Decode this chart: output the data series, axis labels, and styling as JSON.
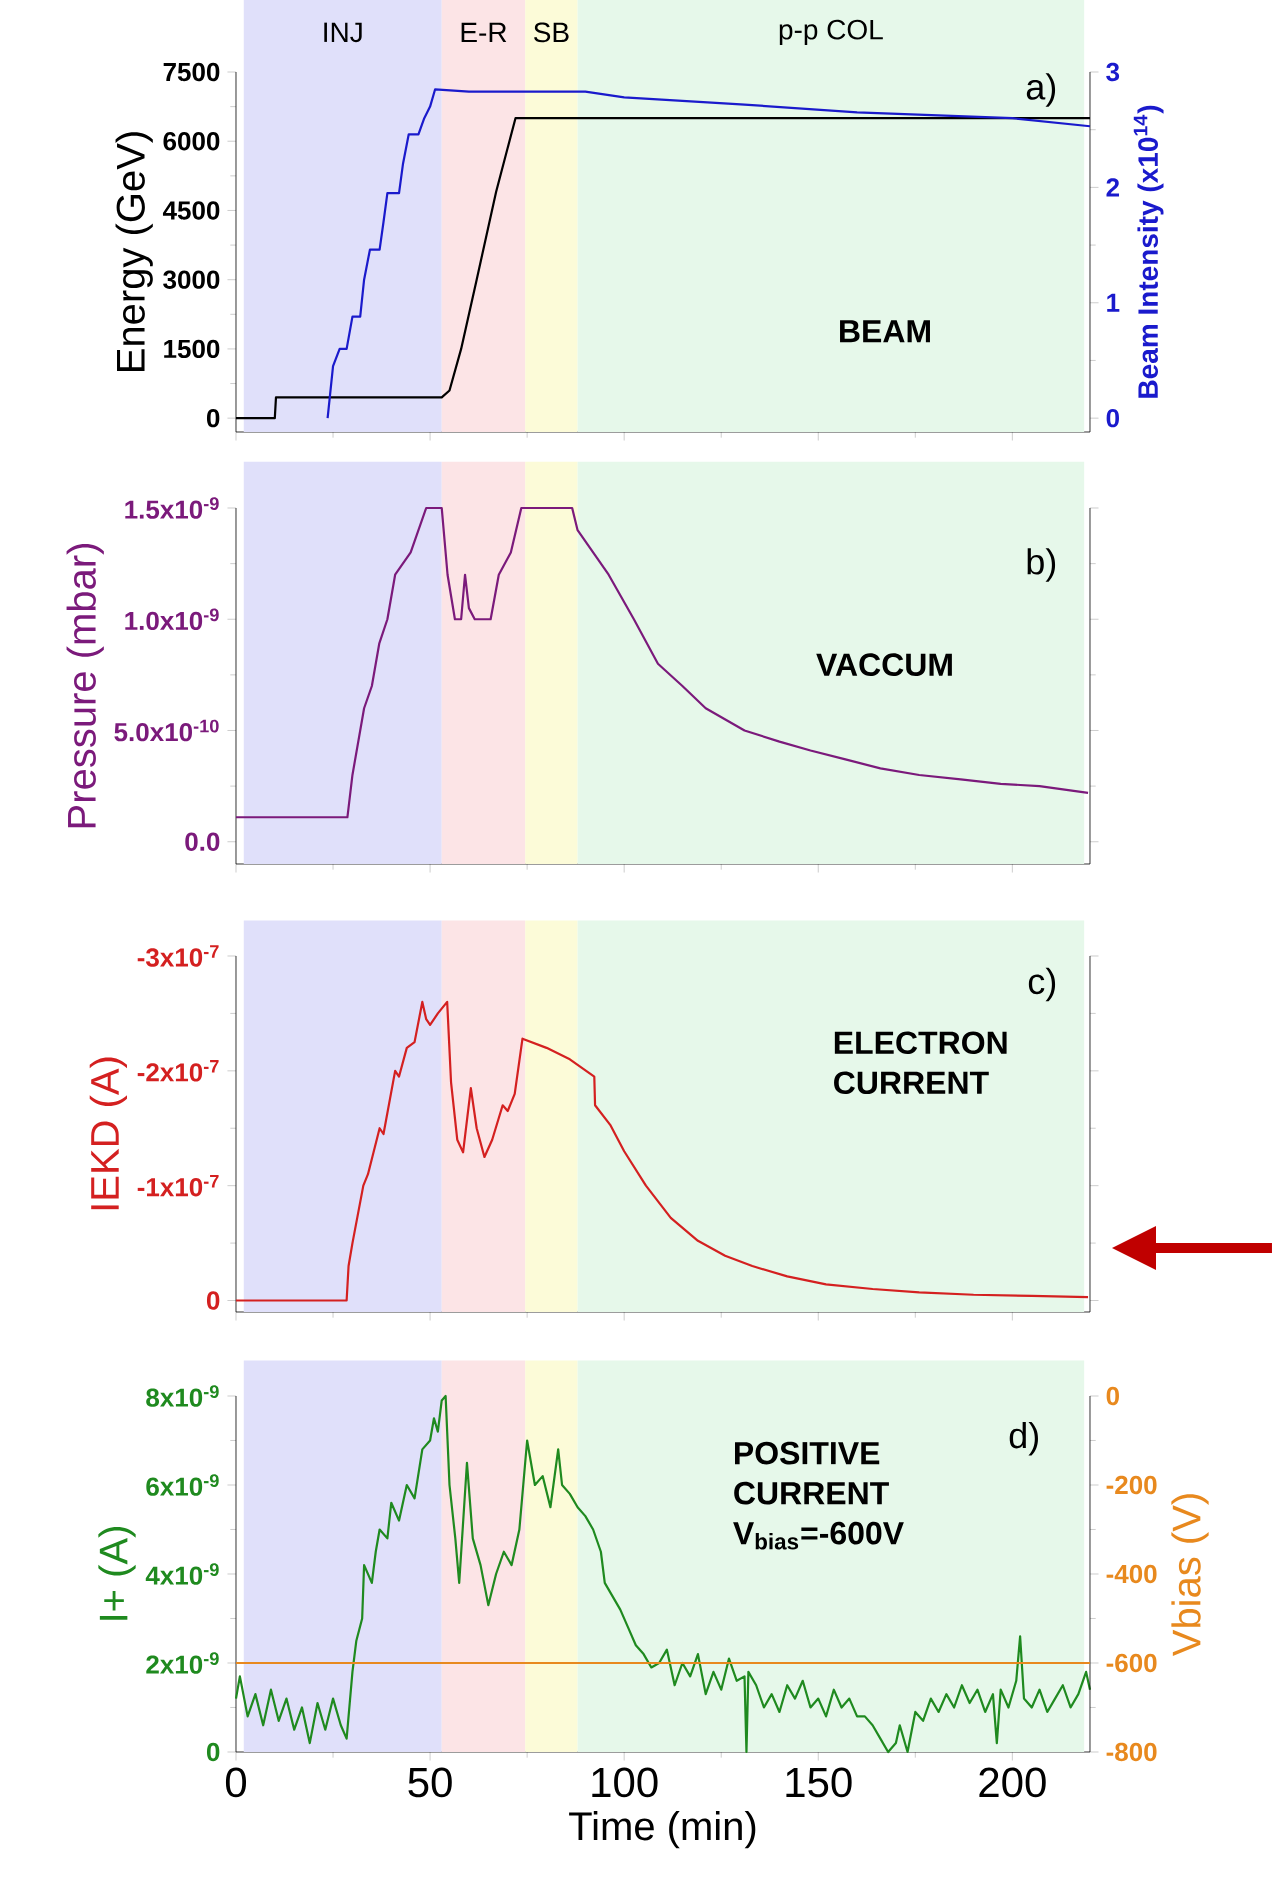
{
  "chart_data": [
    {
      "type": "line",
      "annotations": [
        "a)",
        "BEAM"
      ],
      "xlim": [
        0,
        220
      ],
      "xticks": [
        0,
        50,
        100,
        150,
        200
      ],
      "ylim": [
        -300,
        7500
      ],
      "yticks": [
        0,
        1500,
        3000,
        4500,
        6000,
        7500
      ],
      "y2lim": [
        -0.12,
        3
      ],
      "y2ticks": [
        0,
        1,
        2,
        3
      ],
      "ylabel": "Energy (GeV)",
      "y2label": "Beam Intensity (x10$^{14}$)",
      "tick_labels": "y",
      "bands": [
        {
          "axis": "x",
          "from": 2,
          "to": 53,
          "label": "INJ",
          "color": "#e0e0fa"
        },
        {
          "axis": "x",
          "from": 53,
          "to": 74.5,
          "label": "E-R",
          "color": "#fce4e6"
        },
        {
          "axis": "x",
          "from": 74.5,
          "to": 88,
          "label": "SB",
          "color": "#fcfbd8"
        },
        {
          "axis": "x",
          "from": 88,
          "to": 218.5,
          "label": "p-p COL",
          "color": "#e6f8ea"
        }
      ],
      "series": [
        {
          "color": "#000000",
          "x": [
            0,
            10,
            10.3,
            53,
            55,
            58,
            62,
            67,
            72,
            220
          ],
          "values": [
            0,
            0,
            450,
            450,
            600,
            1500,
            3000,
            4900,
            6500,
            6500
          ]
        },
        {
          "color": "#1a1acc",
          "axis": "y2",
          "x": [
            23.6,
            25,
            26.7,
            28.5,
            30,
            32,
            33,
            34.5,
            37,
            38,
            39,
            42,
            43,
            44.5,
            47,
            48.5,
            50,
            51.3,
            60,
            90,
            100,
            130,
            160,
            200,
            220
          ],
          "values": [
            0,
            0.45,
            0.6,
            0.6,
            0.88,
            0.88,
            1.2,
            1.46,
            1.46,
            1.7,
            1.95,
            1.95,
            2.2,
            2.46,
            2.46,
            2.6,
            2.7,
            2.85,
            2.83,
            2.83,
            2.78,
            2.72,
            2.65,
            2.6,
            2.53
          ]
        }
      ]
    },
    {
      "type": "line",
      "annotations": [
        "b)",
        "VACCUM"
      ],
      "xlim": [
        0,
        220
      ],
      "xticks": [
        0,
        50,
        100,
        150,
        200
      ],
      "ylim": [
        -1e-10,
        1.5e-09
      ],
      "yticks": [
        {
          "value": 0,
          "label": "0.0"
        },
        {
          "value": 5e-10,
          "label": "5.0x10$^{-10}$"
        },
        {
          "value": 1e-09,
          "label": "1.0x10$^{-9}$"
        },
        {
          "value": 1.5e-09,
          "label": "1.5x10$^{-9}$"
        }
      ],
      "ylabel": "Pressure (mbar)",
      "tick_labels": "y",
      "bands": [
        {
          "axis": "x",
          "from": 2,
          "to": 53,
          "color": "#e0e0fa"
        },
        {
          "axis": "x",
          "from": 53,
          "to": 74.5,
          "color": "#fce4e6"
        },
        {
          "axis": "x",
          "from": 74.5,
          "to": 88,
          "color": "#fcfbd8"
        },
        {
          "axis": "x",
          "from": 88,
          "to": 218.5,
          "color": "#e6f8ea"
        }
      ],
      "series": [
        {
          "color": "#7b1a7b",
          "x": [
            0,
            28.7,
            30,
            33,
            35,
            36.9,
            39,
            41,
            43,
            45,
            47,
            49,
            53,
            54.5,
            56.4,
            58,
            59,
            60,
            61.5,
            65.6,
            67.7,
            70.8,
            73.5,
            86.6,
            88,
            92,
            96,
            102.5,
            108.7,
            115,
            121,
            131,
            140,
            148,
            157,
            166,
            176,
            186.7,
            197,
            207,
            219.5
          ],
          "values": [
            1.1e-10,
            1.1e-10,
            3e-10,
            6e-10,
            7e-10,
            8.9e-10,
            1e-09,
            1.2e-09,
            1.25e-09,
            1.3e-09,
            1.4e-09,
            1.5e-09,
            1.5e-09,
            1.2e-09,
            1e-09,
            1e-09,
            1.2e-09,
            1.05e-09,
            1e-09,
            1e-09,
            1.2e-09,
            1.3e-09,
            1.5e-09,
            1.5e-09,
            1.4e-09,
            1.3e-09,
            1.2e-09,
            1e-09,
            8e-10,
            7e-10,
            6e-10,
            5e-10,
            4.5e-10,
            4.1e-10,
            3.7e-10,
            3.3e-10,
            3e-10,
            2.8e-10,
            2.6e-10,
            2.5e-10,
            2.2e-10
          ]
        }
      ]
    },
    {
      "type": "line",
      "annotations": [
        "c)",
        "ELECTRON CURRENT"
      ],
      "xlim": [
        0,
        220
      ],
      "xticks": [
        0,
        50,
        100,
        150,
        200
      ],
      "ylim": [
        1e-08,
        -3e-07
      ],
      "yticks": [
        0,
        {
          "value": -1e-07,
          "label": "-1x10$^{-7}$"
        },
        {
          "value": -2e-07,
          "label": "-2x10$^{-7}$"
        },
        {
          "value": -3e-07,
          "label": "-3x10$^{-7}$"
        }
      ],
      "ylabel": "IEKD (A)",
      "tick_labels": "y",
      "bands": [
        {
          "axis": "x",
          "from": 2,
          "to": 53,
          "color": "#e0e0fa"
        },
        {
          "axis": "x",
          "from": 53,
          "to": 74.5,
          "color": "#fce4e6"
        },
        {
          "axis": "x",
          "from": 74.5,
          "to": 88,
          "color": "#fcfbd8"
        },
        {
          "axis": "x",
          "from": 88,
          "to": 218.5,
          "color": "#e6f8ea"
        }
      ],
      "series": [
        {
          "color": "#d42020",
          "x": [
            0,
            28.5,
            29,
            30,
            32.8,
            34,
            37,
            38,
            41,
            42,
            44,
            46,
            48,
            49,
            50,
            52,
            54.4,
            55.4,
            57,
            58.5,
            60.5,
            62,
            64,
            66,
            68.7,
            70,
            71.8,
            73.8,
            80,
            86,
            92.3,
            92.5,
            96.4,
            100,
            105.6,
            112,
            119,
            126,
            133,
            142,
            152,
            164,
            176,
            190,
            205,
            219.5
          ],
          "values": [
            0,
            0,
            -3e-08,
            -5e-08,
            -1e-07,
            -1.1e-07,
            -1.5e-07,
            -1.45e-07,
            -2e-07,
            -1.95e-07,
            -2.2e-07,
            -2.25e-07,
            -2.6e-07,
            -2.45e-07,
            -2.4e-07,
            -2.5e-07,
            -2.6e-07,
            -1.9e-07,
            -1.4e-07,
            -1.29e-07,
            -1.85e-07,
            -1.5e-07,
            -1.25e-07,
            -1.4e-07,
            -1.7e-07,
            -1.65e-07,
            -1.8e-07,
            -2.28e-07,
            -2.2e-07,
            -2.1e-07,
            -1.95e-07,
            -1.7e-07,
            -1.53e-07,
            -1.3e-07,
            -1e-07,
            -7.2e-08,
            -5.2e-08,
            -3.9e-08,
            -3e-08,
            -2.1e-08,
            -1.4e-08,
            -1e-08,
            -7e-09,
            -5e-09,
            -4e-09,
            -3e-09
          ]
        }
      ]
    },
    {
      "type": "line",
      "annotations": [
        "d)",
        "POSITIVE CURRENT V$_{bias}$=-600V"
      ],
      "xlabel": "Time (min)",
      "xlim": [
        0,
        220
      ],
      "xticks": [
        0,
        50,
        100,
        150,
        200
      ],
      "ylim": [
        0,
        8e-09
      ],
      "yticks": [
        0,
        {
          "value": 2e-09,
          "label": "2x10$^{-9}$"
        },
        {
          "value": 4e-09,
          "label": "4x10$^{-9}$"
        },
        {
          "value": 6e-09,
          "label": "6x10$^{-9}$"
        },
        {
          "value": 8e-09,
          "label": "8x10$^{-9}$"
        }
      ],
      "y2lim": [
        -800,
        0
      ],
      "y2ticks": [
        -800,
        -600,
        -400,
        -200,
        0
      ],
      "ylabel": "I+ (A)",
      "y2label": "Vbias (V)",
      "bands": [
        {
          "axis": "x",
          "from": 2,
          "to": 53,
          "color": "#e0e0fa"
        },
        {
          "axis": "x",
          "from": 53,
          "to": 74.5,
          "color": "#fce4e6"
        },
        {
          "axis": "x",
          "from": 74.5,
          "to": 88,
          "color": "#fcfbd8"
        },
        {
          "axis": "x",
          "from": 88,
          "to": 218.5,
          "color": "#e6f8ea"
        }
      ],
      "series": [
        {
          "color": "#1f8a1f",
          "x": [
            0,
            1,
            3,
            5,
            7,
            9,
            11,
            13,
            15,
            17,
            19,
            21,
            23,
            25,
            27,
            28.5,
            30,
            31,
            32.5,
            33,
            35,
            36,
            37,
            39,
            40,
            42,
            44,
            46,
            48,
            50,
            51,
            52,
            53,
            54,
            55,
            56.5,
            57.5,
            59.5,
            61,
            63,
            65,
            67,
            69,
            71,
            73,
            74.5,
            75,
            77,
            79,
            81,
            83,
            84,
            86,
            88,
            90,
            92,
            94,
            95,
            97,
            99,
            101,
            103,
            105,
            107,
            109,
            111,
            113,
            115,
            117,
            119,
            121,
            123,
            125,
            127,
            129,
            131,
            131.5,
            132,
            134,
            136,
            138,
            140,
            142,
            144,
            146,
            148,
            150,
            152,
            154,
            156,
            158,
            160,
            162,
            164,
            166,
            168,
            170,
            171,
            173,
            175,
            177,
            179,
            181,
            183,
            185,
            187,
            189,
            191,
            193,
            195,
            196,
            197,
            199,
            201,
            202,
            203,
            205,
            207,
            209,
            211,
            213,
            215,
            217,
            219,
            220
          ],
          "values": [
            1.2e-09,
            1.7e-09,
            8e-10,
            1.3e-09,
            6e-10,
            1.4e-09,
            7e-10,
            1.2e-09,
            5e-10,
            1e-09,
            2e-10,
            1.1e-09,
            5e-10,
            1.2e-09,
            6e-10,
            3e-10,
            1.8e-09,
            2.5e-09,
            3e-09,
            4.2e-09,
            3.8e-09,
            4.5e-09,
            5e-09,
            4.8e-09,
            5.6e-09,
            5.2e-09,
            6e-09,
            5.7e-09,
            6.8e-09,
            7e-09,
            7.5e-09,
            7.2e-09,
            7.9e-09,
            8e-09,
            6e-09,
            4.8e-09,
            3.8e-09,
            6.5e-09,
            4.8e-09,
            4.2e-09,
            3.3e-09,
            4e-09,
            4.5e-09,
            4.2e-09,
            5e-09,
            6.5e-09,
            7e-09,
            6e-09,
            6.2e-09,
            5.5e-09,
            6.8e-09,
            6e-09,
            5.8e-09,
            5.5e-09,
            5.3e-09,
            5e-09,
            4.5e-09,
            3.8e-09,
            3.5e-09,
            3.2e-09,
            2.8e-09,
            2.4e-09,
            2.2e-09,
            1.9e-09,
            2e-09,
            2.3e-09,
            1.5e-09,
            2e-09,
            1.7e-09,
            2.2e-09,
            1.3e-09,
            1.8e-09,
            1.4e-09,
            2.1e-09,
            1.6e-09,
            1.7e-09,
            0,
            1.8e-09,
            1.5e-09,
            1e-09,
            1.3e-09,
            9e-10,
            1.5e-09,
            1.2e-09,
            1.6e-09,
            1e-09,
            1.2e-09,
            8e-10,
            1.4e-09,
            1e-09,
            1.2e-09,
            8e-10,
            8e-10,
            6e-10,
            3e-10,
            0,
            2e-10,
            6e-10,
            0,
            9e-10,
            7e-10,
            1.2e-09,
            9e-10,
            1.3e-09,
            1e-09,
            1.5e-09,
            1.1e-09,
            1.4e-09,
            9e-10,
            1.3e-09,
            2e-10,
            1.4e-09,
            1e-09,
            1.6e-09,
            2.6e-09,
            1.2e-09,
            1e-09,
            1.4e-09,
            9e-10,
            1.2e-09,
            1.5e-09,
            1e-09,
            1.3e-09,
            1.8e-09,
            1.4e-09
          ]
        },
        {
          "color": "#e8891e",
          "axis": "y2",
          "x": [
            0,
            220
          ],
          "values": [
            -600,
            -600
          ]
        }
      ]
    }
  ]
}
